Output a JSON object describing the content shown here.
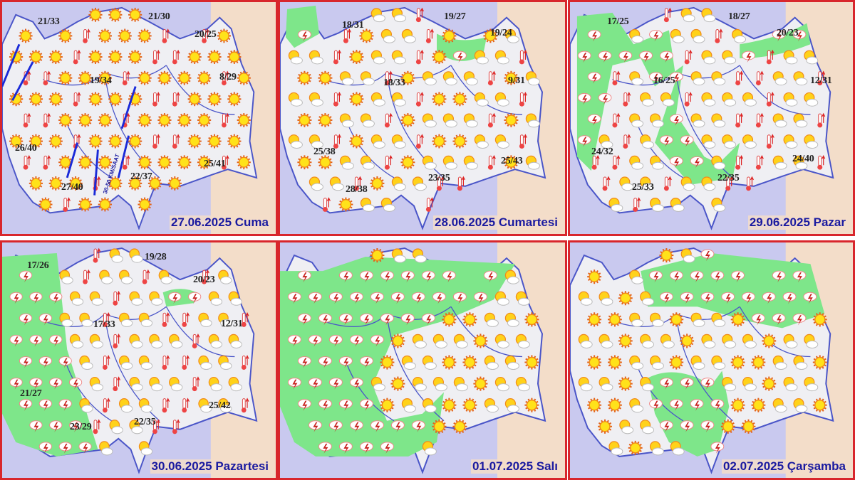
{
  "colors": {
    "border": "#d8262c",
    "sea": "#c9c9ef",
    "land": "#efeff3",
    "neighbour": "#f3ddc9",
    "storm_zone": "#7ee68a",
    "outline": "#4a55c8",
    "date_text": "#1a1aa0"
  },
  "panels": [
    {
      "date": "27.06.2025 Cuma",
      "icon_types": [
        "sun-icon",
        "sun-icon",
        "sun-icon",
        "thermometer-icon"
      ],
      "wind": "30-50 KM/SAAT",
      "temps": [
        "21/33",
        "21/30",
        "20/25",
        "19/34",
        "8/29",
        "26/40",
        "27/40",
        "22/37",
        "25/41"
      ]
    },
    {
      "date": "28.06.2025 Cumartesi",
      "icon_types": [
        "partly-cloudy-icon",
        "partly-cloudy-icon",
        "sun-icon",
        "thermometer-icon"
      ],
      "temps": [
        "18/31",
        "19/27",
        "19/24",
        "18/33",
        "9/31",
        "25/38",
        "28/38",
        "23/35",
        "25/43"
      ]
    },
    {
      "date": "29.06.2025 Pazar",
      "icon_types": [
        "partly-cloudy-icon",
        "partly-cloudy-icon",
        "thermometer-icon"
      ],
      "temps": [
        "17/25",
        "18/27",
        "20/23",
        "16/25",
        "12/31",
        "24/32",
        "25/33",
        "22/35",
        "24/40"
      ]
    },
    {
      "date": "30.06.2025 Pazartesi",
      "icon_types": [
        "partly-cloudy-icon",
        "partly-cloudy-icon",
        "thermometer-icon"
      ],
      "temps": [
        "17/26",
        "19/28",
        "20/23",
        "17/33",
        "12/31",
        "21/27",
        "23/29",
        "22/35",
        "25/42"
      ]
    },
    {
      "date": "01.07.2025 Salı",
      "icon_types": [
        "partly-cloudy-icon",
        "partly-cloudy-icon",
        "sun-icon"
      ],
      "temps": []
    },
    {
      "date": "02.07.2025 Çarşamba",
      "icon_types": [
        "partly-cloudy-icon",
        "partly-cloudy-icon",
        "sun-icon"
      ],
      "temps": []
    }
  ]
}
